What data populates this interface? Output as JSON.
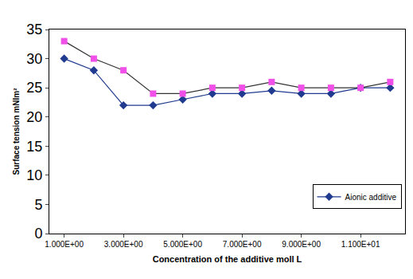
{
  "chart_data": {
    "type": "line",
    "x_label": "Concentration of the additive moll L",
    "y_label": "Surface tension mNIm²",
    "x": [
      1,
      2,
      3,
      4,
      5,
      6,
      7,
      8,
      9,
      10,
      11,
      12
    ],
    "series": [
      {
        "name": "Aionic additive",
        "color": "#1f3a8f",
        "marker": "diamond",
        "line_style": "solid",
        "values": [
          30,
          28,
          22,
          22,
          23,
          24,
          24,
          24.5,
          24,
          24,
          25,
          25
        ]
      },
      {
        "color": "#f050e8",
        "marker": "square",
        "line_style": "solid",
        "values": [
          33,
          30,
          28,
          24,
          24,
          25,
          25,
          26,
          25,
          25,
          25,
          26
        ]
      }
    ],
    "xlim": [
      0.5,
      12.5
    ],
    "xticks": [
      {
        "value": 1,
        "label": "1.000E+00"
      },
      {
        "value": 3,
        "label": "3.000E+00"
      },
      {
        "value": 5,
        "label": "5.000E+00"
      },
      {
        "value": 7,
        "label": "7.000E+00"
      },
      {
        "value": 9,
        "label": "9.000E+00"
      },
      {
        "value": 11,
        "label": "1.100E+01"
      }
    ],
    "ylim": [
      0,
      35
    ],
    "yticks": [
      0,
      5,
      10,
      15,
      20,
      25,
      30,
      35
    ],
    "grid": false,
    "legend": "lower right"
  }
}
